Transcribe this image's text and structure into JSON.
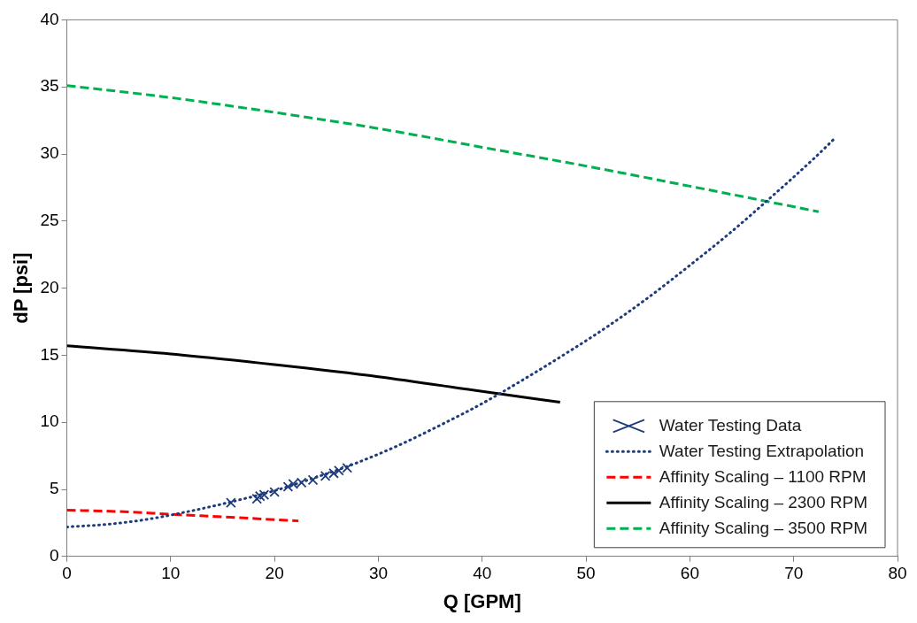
{
  "chart_data": {
    "type": "line",
    "xlabel": "Q [GPM]",
    "ylabel": "dP [psi]",
    "xlim": [
      0,
      80
    ],
    "xticks": [
      0,
      10,
      20,
      30,
      40,
      50,
      60,
      70,
      80
    ],
    "ylim": [
      0,
      40
    ],
    "yticks": [
      0,
      5,
      10,
      15,
      20,
      25,
      30,
      35,
      40
    ],
    "grid": false,
    "legend": "bottom right",
    "series": [
      {
        "name": "Water Testing Data",
        "type": "scatter",
        "marker": "cross",
        "color": "#1f3c7a",
        "x": [
          15.8,
          18.3,
          18.6,
          19.0,
          20.0,
          21.3,
          21.8,
          22.6,
          23.7,
          24.9,
          25.7,
          26.2,
          27.0
        ],
        "values": [
          4.0,
          4.3,
          4.5,
          4.6,
          4.8,
          5.2,
          5.4,
          5.5,
          5.7,
          6.0,
          6.2,
          6.4,
          6.6
        ]
      },
      {
        "name": "Water Testing Extrapolation",
        "line_style": "dotted",
        "color": "#1f3c7a",
        "x": [
          0,
          4,
          8,
          12,
          16,
          20,
          24,
          28,
          32,
          36,
          40,
          44,
          48,
          52,
          56,
          60,
          64,
          68,
          72,
          74
        ],
        "values": [
          2.2,
          2.4,
          2.8,
          3.4,
          4.1,
          4.9,
          5.9,
          7.0,
          8.3,
          9.8,
          11.4,
          13.2,
          15.1,
          17.1,
          19.3,
          21.7,
          24.2,
          26.9,
          29.7,
          31.2
        ]
      },
      {
        "name": "Affinity Scaling – 1100 RPM",
        "line_style": "dashed",
        "color": "#ff0000",
        "x": [
          0,
          5,
          10,
          15,
          22.3
        ],
        "values": [
          3.45,
          3.35,
          3.15,
          2.95,
          2.65
        ]
      },
      {
        "name": "Affinity Scaling – 2300 RPM",
        "line_style": "solid",
        "color": "#000000",
        "x": [
          0,
          10,
          20,
          30,
          40,
          47.5
        ],
        "values": [
          15.7,
          15.1,
          14.3,
          13.4,
          12.3,
          11.5
        ]
      },
      {
        "name": "Affinity Scaling – 3500 RPM",
        "line_style": "dashed",
        "color": "#00b050",
        "x": [
          0,
          10,
          20,
          30,
          40,
          50,
          60,
          72.4
        ],
        "values": [
          35.1,
          34.2,
          33.1,
          31.9,
          30.5,
          29.1,
          27.6,
          25.7
        ]
      }
    ]
  }
}
